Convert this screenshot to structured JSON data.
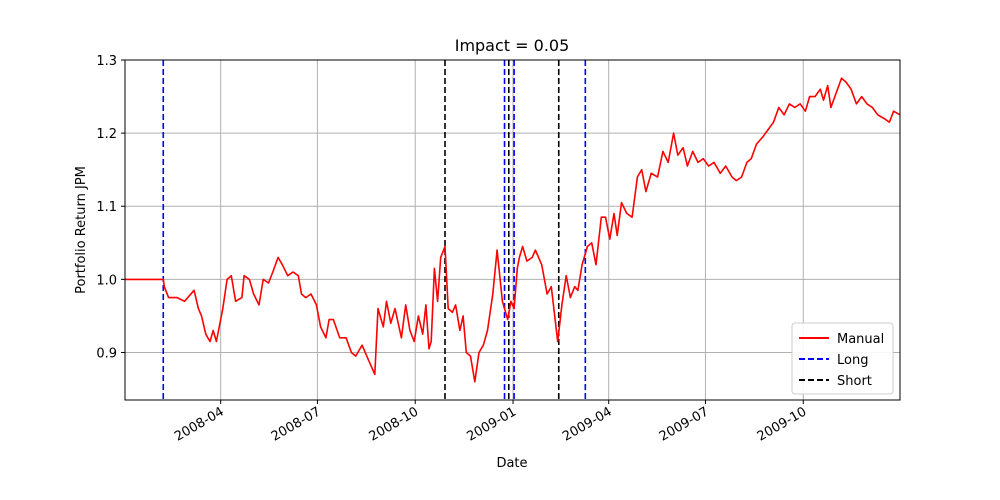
{
  "chart_data": {
    "type": "line",
    "title": "Impact = 0.05",
    "xlabel": "Date",
    "ylabel": "Portfolio Return JPM",
    "xlim": [
      "2008-01-02",
      "2009-12-31"
    ],
    "ylim": [
      0.835,
      1.3
    ],
    "y_ticks": [
      0.9,
      1.0,
      1.1,
      1.2,
      1.3
    ],
    "y_tick_labels": [
      "0.9",
      "1.0",
      "1.1",
      "1.2",
      "1.3"
    ],
    "x_ticks": [
      "2008-04-01",
      "2008-07-01",
      "2008-10-01",
      "2009-01-01",
      "2009-04-01",
      "2009-07-01",
      "2009-10-01"
    ],
    "x_tick_labels": [
      "2008-04",
      "2008-07",
      "2008-10",
      "2009-01",
      "2009-04",
      "2009-07",
      "2009-10"
    ],
    "grid": true,
    "legend_position": "bottom-right",
    "colors": {
      "manual": "#ff0000",
      "long": "#0000ff",
      "short": "#000000"
    },
    "series": [
      {
        "name": "Manual",
        "style": "solid",
        "points": [
          [
            "2008-01-02",
            1.0
          ],
          [
            "2008-02-07",
            1.0
          ],
          [
            "2008-02-08",
            0.99
          ],
          [
            "2008-02-12",
            0.975
          ],
          [
            "2008-02-20",
            0.975
          ],
          [
            "2008-02-27",
            0.97
          ],
          [
            "2008-03-07",
            0.985
          ],
          [
            "2008-03-11",
            0.96
          ],
          [
            "2008-03-14",
            0.95
          ],
          [
            "2008-03-18",
            0.925
          ],
          [
            "2008-03-22",
            0.915
          ],
          [
            "2008-03-25",
            0.93
          ],
          [
            "2008-03-28",
            0.915
          ],
          [
            "2008-04-03",
            0.96
          ],
          [
            "2008-04-07",
            1.0
          ],
          [
            "2008-04-11",
            1.005
          ],
          [
            "2008-04-15",
            0.97
          ],
          [
            "2008-04-21",
            0.975
          ],
          [
            "2008-04-23",
            1.005
          ],
          [
            "2008-04-28",
            1.0
          ],
          [
            "2008-05-02",
            0.98
          ],
          [
            "2008-05-07",
            0.965
          ],
          [
            "2008-05-11",
            1.0
          ],
          [
            "2008-05-16",
            0.995
          ],
          [
            "2008-05-20",
            1.01
          ],
          [
            "2008-05-25",
            1.03
          ],
          [
            "2008-05-29",
            1.02
          ],
          [
            "2008-06-03",
            1.005
          ],
          [
            "2008-06-08",
            1.01
          ],
          [
            "2008-06-13",
            1.005
          ],
          [
            "2008-06-16",
            0.98
          ],
          [
            "2008-06-20",
            0.975
          ],
          [
            "2008-06-25",
            0.98
          ],
          [
            "2008-06-30",
            0.965
          ],
          [
            "2008-07-04",
            0.935
          ],
          [
            "2008-07-09",
            0.92
          ],
          [
            "2008-07-12",
            0.945
          ],
          [
            "2008-07-16",
            0.945
          ],
          [
            "2008-07-22",
            0.92
          ],
          [
            "2008-07-28",
            0.92
          ],
          [
            "2008-08-02",
            0.9
          ],
          [
            "2008-08-06",
            0.895
          ],
          [
            "2008-08-12",
            0.91
          ],
          [
            "2008-08-18",
            0.89
          ],
          [
            "2008-08-24",
            0.87
          ],
          [
            "2008-08-27",
            0.96
          ],
          [
            "2008-09-01",
            0.935
          ],
          [
            "2008-09-04",
            0.97
          ],
          [
            "2008-09-08",
            0.94
          ],
          [
            "2008-09-12",
            0.96
          ],
          [
            "2008-09-18",
            0.92
          ],
          [
            "2008-09-22",
            0.965
          ],
          [
            "2008-09-26",
            0.93
          ],
          [
            "2008-09-30",
            0.915
          ],
          [
            "2008-10-04",
            0.95
          ],
          [
            "2008-10-08",
            0.925
          ],
          [
            "2008-10-11",
            0.965
          ],
          [
            "2008-10-14",
            0.905
          ],
          [
            "2008-10-16",
            0.915
          ],
          [
            "2008-10-19",
            1.015
          ],
          [
            "2008-10-22",
            0.97
          ],
          [
            "2008-10-25",
            1.03
          ],
          [
            "2008-10-29",
            1.045
          ],
          [
            "2008-11-01",
            0.96
          ],
          [
            "2008-11-05",
            0.955
          ],
          [
            "2008-11-08",
            0.965
          ],
          [
            "2008-11-12",
            0.93
          ],
          [
            "2008-11-15",
            0.95
          ],
          [
            "2008-11-18",
            0.9
          ],
          [
            "2008-11-22",
            0.895
          ],
          [
            "2008-11-26",
            0.86
          ],
          [
            "2008-11-30",
            0.9
          ],
          [
            "2008-12-04",
            0.91
          ],
          [
            "2008-12-08",
            0.93
          ],
          [
            "2008-12-13",
            0.98
          ],
          [
            "2008-12-17",
            1.04
          ],
          [
            "2008-12-22",
            0.97
          ],
          [
            "2008-12-27",
            0.945
          ],
          [
            "2008-12-30",
            0.97
          ],
          [
            "2009-01-02",
            0.96
          ],
          [
            "2009-01-05",
            1.015
          ],
          [
            "2009-01-07",
            1.03
          ],
          [
            "2009-01-10",
            1.045
          ],
          [
            "2009-01-14",
            1.025
          ],
          [
            "2009-01-19",
            1.03
          ],
          [
            "2009-01-22",
            1.04
          ],
          [
            "2009-01-28",
            1.02
          ],
          [
            "2009-02-02",
            0.98
          ],
          [
            "2009-02-06",
            0.99
          ],
          [
            "2009-02-12",
            0.915
          ],
          [
            "2009-02-16",
            0.965
          ],
          [
            "2009-02-20",
            1.005
          ],
          [
            "2009-02-24",
            0.975
          ],
          [
            "2009-02-28",
            0.99
          ],
          [
            "2009-03-03",
            0.985
          ],
          [
            "2009-03-07",
            1.02
          ],
          [
            "2009-03-12",
            1.045
          ],
          [
            "2009-03-16",
            1.05
          ],
          [
            "2009-03-20",
            1.02
          ],
          [
            "2009-03-25",
            1.085
          ],
          [
            "2009-03-29",
            1.085
          ],
          [
            "2009-04-02",
            1.055
          ],
          [
            "2009-04-06",
            1.09
          ],
          [
            "2009-04-09",
            1.06
          ],
          [
            "2009-04-13",
            1.105
          ],
          [
            "2009-04-18",
            1.09
          ],
          [
            "2009-04-23",
            1.085
          ],
          [
            "2009-04-28",
            1.14
          ],
          [
            "2009-05-02",
            1.15
          ],
          [
            "2009-05-06",
            1.12
          ],
          [
            "2009-05-11",
            1.145
          ],
          [
            "2009-05-17",
            1.14
          ],
          [
            "2009-05-22",
            1.175
          ],
          [
            "2009-05-27",
            1.16
          ],
          [
            "2009-06-01",
            1.2
          ],
          [
            "2009-06-05",
            1.17
          ],
          [
            "2009-06-10",
            1.18
          ],
          [
            "2009-06-14",
            1.155
          ],
          [
            "2009-06-19",
            1.175
          ],
          [
            "2009-06-24",
            1.16
          ],
          [
            "2009-06-29",
            1.165
          ],
          [
            "2009-07-04",
            1.155
          ],
          [
            "2009-07-09",
            1.16
          ],
          [
            "2009-07-15",
            1.145
          ],
          [
            "2009-07-20",
            1.155
          ],
          [
            "2009-07-26",
            1.14
          ],
          [
            "2009-07-30",
            1.135
          ],
          [
            "2009-08-04",
            1.14
          ],
          [
            "2009-08-09",
            1.16
          ],
          [
            "2009-08-13",
            1.165
          ],
          [
            "2009-08-18",
            1.185
          ],
          [
            "2009-08-24",
            1.195
          ],
          [
            "2009-08-29",
            1.205
          ],
          [
            "2009-09-03",
            1.215
          ],
          [
            "2009-09-08",
            1.235
          ],
          [
            "2009-09-13",
            1.225
          ],
          [
            "2009-09-18",
            1.24
          ],
          [
            "2009-09-23",
            1.235
          ],
          [
            "2009-09-28",
            1.24
          ],
          [
            "2009-10-03",
            1.23
          ],
          [
            "2009-10-07",
            1.25
          ],
          [
            "2009-10-12",
            1.25
          ],
          [
            "2009-10-17",
            1.26
          ],
          [
            "2009-10-20",
            1.245
          ],
          [
            "2009-10-24",
            1.265
          ],
          [
            "2009-10-27",
            1.235
          ],
          [
            "2009-11-01",
            1.255
          ],
          [
            "2009-11-06",
            1.275
          ],
          [
            "2009-11-10",
            1.27
          ],
          [
            "2009-11-15",
            1.26
          ],
          [
            "2009-11-20",
            1.24
          ],
          [
            "2009-11-25",
            1.25
          ],
          [
            "2009-11-30",
            1.24
          ],
          [
            "2009-12-05",
            1.235
          ],
          [
            "2009-12-10",
            1.225
          ],
          [
            "2009-12-16",
            1.22
          ],
          [
            "2009-12-21",
            1.215
          ],
          [
            "2009-12-25",
            1.23
          ],
          [
            "2009-12-31",
            1.225
          ]
        ]
      },
      {
        "name": "Long",
        "style": "dashed",
        "dates": [
          "2008-02-07",
          "2008-12-24",
          "2009-01-02",
          "2009-03-10"
        ]
      },
      {
        "name": "Short",
        "style": "dashed",
        "dates": [
          "2008-10-29",
          "2008-12-28",
          "2009-02-13"
        ]
      }
    ]
  }
}
